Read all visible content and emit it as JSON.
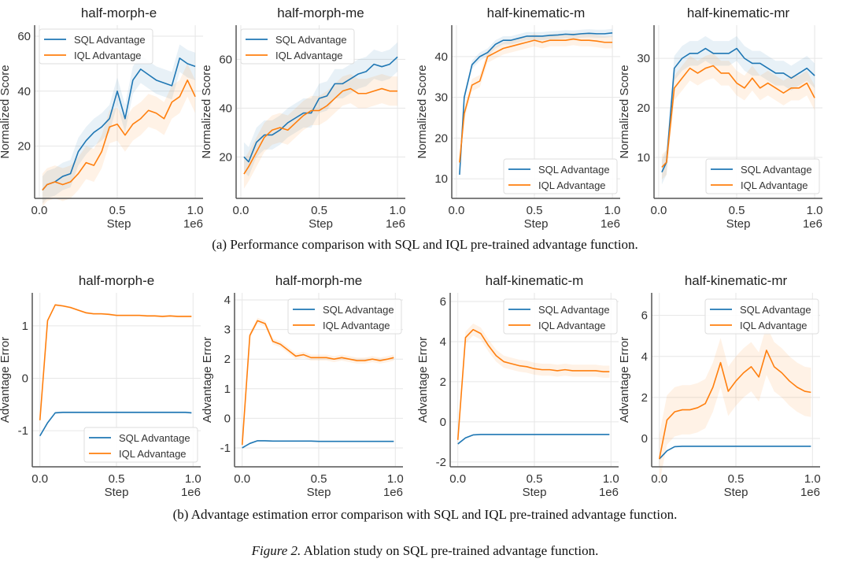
{
  "captions": {
    "a": "(a)  Performance comparison with SQL and IQL pre-trained advantage function.",
    "b": "(b)  Advantage estimation error comparison with SQL and IQL pre-trained advantage function.",
    "figure_label": "Figure 2.",
    "figure_text": " Ablation study on SQL pre-trained advantage function."
  },
  "colors": {
    "sql": "#1f77b4",
    "iql": "#ff7f0e"
  },
  "chart_data": [
    {
      "type": "line",
      "title": "half-morph-e",
      "xlabel": "Step",
      "ylabel": "Normalized Score",
      "x_multiplier": "1e6",
      "xlim": [
        -0.03,
        1.05
      ],
      "ylim": [
        1,
        64
      ],
      "xticks": [
        0.0,
        0.5,
        1.0
      ],
      "yticks": [
        20,
        40,
        60
      ],
      "grid": true,
      "legend": "top-left",
      "x": [
        0.02,
        0.05,
        0.1,
        0.15,
        0.2,
        0.25,
        0.3,
        0.35,
        0.4,
        0.45,
        0.5,
        0.55,
        0.6,
        0.65,
        0.7,
        0.75,
        0.8,
        0.85,
        0.9,
        0.95,
        1.0
      ],
      "series": [
        {
          "name": "SQL Advantage",
          "std": 5,
          "values": [
            4,
            6,
            7,
            9,
            10,
            18,
            22,
            25,
            27,
            30,
            40,
            30,
            44,
            48,
            46,
            44,
            43,
            42,
            52,
            50,
            49
          ]
        },
        {
          "name": "IQL Advantage",
          "std": 6,
          "values": [
            4,
            6,
            7,
            6,
            7,
            10,
            14,
            13,
            18,
            27,
            28,
            24,
            28,
            30,
            33,
            32,
            30,
            36,
            38,
            44,
            38
          ]
        }
      ]
    },
    {
      "type": "line",
      "title": "half-morph-me",
      "xlabel": "Step",
      "ylabel": "Normalized Score",
      "x_multiplier": "1e6",
      "xlim": [
        -0.03,
        1.05
      ],
      "ylim": [
        3,
        74
      ],
      "xticks": [
        0.0,
        0.5,
        1.0
      ],
      "yticks": [
        20,
        40,
        60
      ],
      "grid": true,
      "legend": "top-left",
      "x": [
        0.02,
        0.05,
        0.1,
        0.15,
        0.2,
        0.25,
        0.3,
        0.35,
        0.4,
        0.45,
        0.5,
        0.55,
        0.6,
        0.65,
        0.7,
        0.75,
        0.8,
        0.85,
        0.9,
        0.95,
        1.0
      ],
      "series": [
        {
          "name": "SQL Advantage",
          "std": 6,
          "values": [
            20,
            18,
            26,
            29,
            29,
            31,
            34,
            36,
            38,
            38,
            44,
            45,
            50,
            50,
            52,
            54,
            55,
            58,
            57,
            58,
            61
          ]
        },
        {
          "name": "IQL Advantage",
          "std": 6,
          "values": [
            13,
            16,
            22,
            28,
            31,
            32,
            31,
            34,
            37,
            39,
            39,
            41,
            44,
            47,
            48,
            46,
            46,
            47,
            48,
            47,
            47
          ]
        }
      ]
    },
    {
      "type": "line",
      "title": "half-kinematic-m",
      "xlabel": "Step",
      "ylabel": "Normalized Score",
      "x_multiplier": "1e6",
      "xlim": [
        -0.03,
        1.05
      ],
      "ylim": [
        5.2,
        47.7
      ],
      "xticks": [
        0.0,
        0.5,
        1.0
      ],
      "yticks": [
        10,
        20,
        30,
        40
      ],
      "grid": true,
      "legend": "bottom-right",
      "x": [
        0.02,
        0.05,
        0.1,
        0.15,
        0.2,
        0.25,
        0.3,
        0.35,
        0.4,
        0.45,
        0.5,
        0.55,
        0.6,
        0.65,
        0.7,
        0.75,
        0.8,
        0.85,
        0.9,
        0.95,
        1.0
      ],
      "series": [
        {
          "name": "SQL Advantage",
          "std": 1,
          "values": [
            11,
            30,
            38,
            40,
            41,
            43,
            44,
            44,
            44.5,
            45,
            45,
            45,
            45.2,
            45.3,
            45.5,
            45.4,
            45.6,
            45.7,
            45.6,
            45.6,
            45.8
          ]
        },
        {
          "name": "IQL Advantage",
          "std": 1.5,
          "values": [
            14,
            26,
            33,
            34,
            40,
            41,
            42,
            42.5,
            43,
            43.5,
            44,
            43.5,
            44,
            44,
            44,
            44.3,
            44,
            44,
            43.8,
            43.5,
            43.5
          ]
        }
      ]
    },
    {
      "type": "line",
      "title": "half-kinematic-mr",
      "xlabel": "Step",
      "ylabel": "Normalized Score",
      "x_multiplier": "1e6",
      "xlim": [
        -0.03,
        1.05
      ],
      "ylim": [
        1.7,
        36.7
      ],
      "xticks": [
        0.0,
        0.5,
        1.0
      ],
      "yticks": [
        10,
        20,
        30
      ],
      "grid": true,
      "legend": "bottom-right",
      "x": [
        0.02,
        0.05,
        0.1,
        0.15,
        0.2,
        0.25,
        0.3,
        0.35,
        0.4,
        0.45,
        0.5,
        0.55,
        0.6,
        0.65,
        0.7,
        0.75,
        0.8,
        0.85,
        0.9,
        0.95,
        1.0
      ],
      "series": [
        {
          "name": "SQL Advantage",
          "std": 2.5,
          "values": [
            7,
            9,
            28,
            30,
            31,
            31,
            32,
            31,
            31,
            31,
            32,
            30,
            29,
            29,
            28,
            27,
            27,
            26,
            27,
            28,
            26.5
          ]
        },
        {
          "name": "IQL Advantage",
          "std": 2.5,
          "values": [
            8,
            9,
            24,
            26,
            28,
            27,
            28,
            28.5,
            27,
            27,
            25,
            24,
            26,
            24,
            25,
            24,
            23,
            24,
            24,
            25,
            22
          ]
        }
      ]
    },
    {
      "type": "line",
      "title": "half-morph-e",
      "xlabel": "Step",
      "ylabel": "Advantage Error",
      "x_multiplier": "1e6",
      "xlim": [
        -0.05,
        1.05
      ],
      "ylim": [
        -1.69,
        1.63
      ],
      "xticks": [
        0.0,
        0.5,
        1.0
      ],
      "yticks": [
        -1,
        0,
        1
      ],
      "grid": true,
      "legend": "bottom-right",
      "x": [
        0.0,
        0.05,
        0.1,
        0.15,
        0.2,
        0.25,
        0.3,
        0.35,
        0.4,
        0.45,
        0.5,
        0.55,
        0.6,
        0.65,
        0.7,
        0.75,
        0.8,
        0.85,
        0.9,
        0.95,
        0.99
      ],
      "series": [
        {
          "name": "SQL Advantage",
          "std": 0.02,
          "values": [
            -1.1,
            -0.85,
            -0.66,
            -0.65,
            -0.65,
            -0.65,
            -0.65,
            -0.65,
            -0.65,
            -0.65,
            -0.65,
            -0.65,
            -0.65,
            -0.65,
            -0.65,
            -0.65,
            -0.65,
            -0.65,
            -0.65,
            -0.65,
            -0.66
          ]
        },
        {
          "name": "IQL Advantage",
          "std": 0.02,
          "values": [
            -0.8,
            1.1,
            1.4,
            1.38,
            1.35,
            1.3,
            1.25,
            1.23,
            1.23,
            1.22,
            1.2,
            1.2,
            1.2,
            1.2,
            1.19,
            1.19,
            1.18,
            1.19,
            1.18,
            1.18,
            1.18
          ]
        }
      ]
    },
    {
      "type": "line",
      "title": "half-morph-me",
      "xlabel": "Step",
      "ylabel": "Advantage Error",
      "x_multiplier": "1e6",
      "xlim": [
        -0.05,
        1.05
      ],
      "ylim": [
        -1.64,
        4.24
      ],
      "xticks": [
        0.0,
        0.5,
        1.0
      ],
      "yticks": [
        -1,
        0,
        1,
        2,
        3,
        4
      ],
      "grid": true,
      "legend": "top-right",
      "x": [
        0.0,
        0.05,
        0.1,
        0.15,
        0.2,
        0.25,
        0.3,
        0.35,
        0.4,
        0.45,
        0.5,
        0.55,
        0.6,
        0.65,
        0.7,
        0.75,
        0.8,
        0.85,
        0.9,
        0.95,
        0.99
      ],
      "series": [
        {
          "name": "SQL Advantage",
          "std": 0.02,
          "values": [
            -1.0,
            -0.85,
            -0.76,
            -0.76,
            -0.77,
            -0.77,
            -0.77,
            -0.77,
            -0.77,
            -0.77,
            -0.78,
            -0.78,
            -0.78,
            -0.78,
            -0.78,
            -0.78,
            -0.78,
            -0.78,
            -0.78,
            -0.78,
            -0.78
          ]
        },
        {
          "name": "IQL Advantage",
          "std": 0.1,
          "values": [
            -0.9,
            2.8,
            3.3,
            3.2,
            2.6,
            2.5,
            2.3,
            2.1,
            2.15,
            2.05,
            2.05,
            2.05,
            2.0,
            2.05,
            2.0,
            1.95,
            1.95,
            2.0,
            1.95,
            2.0,
            2.05
          ]
        }
      ]
    },
    {
      "type": "line",
      "title": "half-kinematic-m",
      "xlabel": "Step",
      "ylabel": "Advantage Error",
      "x_multiplier": "1e6",
      "xlim": [
        -0.05,
        1.05
      ],
      "ylim": [
        -2.24,
        6.43
      ],
      "xticks": [
        0.0,
        0.5,
        1.0
      ],
      "yticks": [
        -2,
        0,
        2,
        4,
        6
      ],
      "grid": true,
      "legend": "top-right",
      "x": [
        0.0,
        0.05,
        0.1,
        0.15,
        0.2,
        0.25,
        0.3,
        0.35,
        0.4,
        0.45,
        0.5,
        0.55,
        0.6,
        0.65,
        0.7,
        0.75,
        0.8,
        0.85,
        0.9,
        0.95,
        0.99
      ],
      "series": [
        {
          "name": "SQL Advantage",
          "std": 0.03,
          "values": [
            -1.1,
            -0.8,
            -0.65,
            -0.63,
            -0.63,
            -0.63,
            -0.63,
            -0.63,
            -0.63,
            -0.63,
            -0.63,
            -0.63,
            -0.63,
            -0.63,
            -0.63,
            -0.63,
            -0.63,
            -0.63,
            -0.63,
            -0.63,
            -0.63
          ]
        },
        {
          "name": "IQL Advantage",
          "std": 0.3,
          "values": [
            -0.9,
            4.2,
            4.6,
            4.4,
            3.8,
            3.3,
            3.0,
            2.9,
            2.8,
            2.75,
            2.65,
            2.6,
            2.6,
            2.55,
            2.6,
            2.55,
            2.55,
            2.55,
            2.55,
            2.5,
            2.5
          ]
        }
      ]
    },
    {
      "type": "line",
      "title": "half-kinematic-mr",
      "xlabel": "Step",
      "ylabel": "Advantage Error",
      "x_multiplier": "1e6",
      "xlim": [
        -0.05,
        1.05
      ],
      "ylim": [
        -1.38,
        7.1
      ],
      "xticks": [
        0.0,
        0.5,
        1.0
      ],
      "yticks": [
        0,
        2,
        4,
        6
      ],
      "grid": true,
      "legend": "top-right",
      "x": [
        0.0,
        0.05,
        0.1,
        0.15,
        0.2,
        0.25,
        0.3,
        0.35,
        0.4,
        0.45,
        0.5,
        0.55,
        0.6,
        0.65,
        0.7,
        0.75,
        0.8,
        0.85,
        0.9,
        0.95,
        0.99
      ],
      "series": [
        {
          "name": "SQL Advantage",
          "std": 0.02,
          "values": [
            -1.0,
            -0.6,
            -0.4,
            -0.38,
            -0.38,
            -0.38,
            -0.38,
            -0.38,
            -0.38,
            -0.38,
            -0.38,
            -0.38,
            -0.38,
            -0.38,
            -0.38,
            -0.38,
            -0.38,
            -0.38,
            -0.38,
            -0.38,
            -0.38
          ]
        },
        {
          "name": "IQL Advantage",
          "std": 1.2,
          "values": [
            -1.0,
            0.9,
            1.3,
            1.4,
            1.4,
            1.5,
            1.7,
            2.5,
            3.7,
            2.3,
            2.8,
            3.2,
            3.5,
            3.0,
            4.3,
            3.5,
            3.2,
            2.8,
            2.5,
            2.3,
            2.25
          ]
        }
      ]
    }
  ]
}
